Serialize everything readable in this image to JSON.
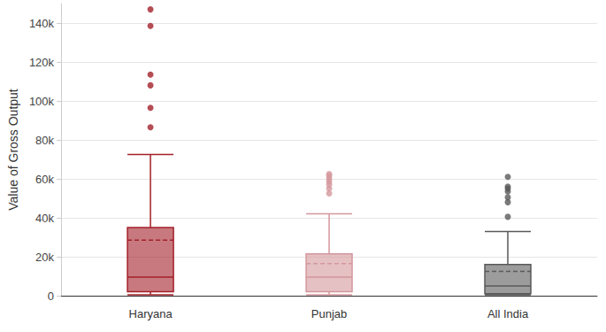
{
  "chart_data": {
    "type": "boxplot",
    "y_label": "Value of Gross Output",
    "categories": [
      "Haryana",
      "Punjab",
      "All India"
    ],
    "colors": [
      "#a3202a",
      "#d4979c",
      "#5a5a5a"
    ],
    "values": [
      [
        500,
        2000,
        9500,
        35000,
        72500
      ],
      [
        500,
        2000,
        9500,
        21500,
        42000
      ],
      [
        500,
        1000,
        5000,
        16000,
        33000
      ]
    ],
    "means": [
      28500,
      16500,
      12500
    ],
    "outliers": [
      [
        86500,
        96500,
        108000,
        113500,
        138500,
        147000
      ],
      [
        52500,
        55000,
        57000,
        58500,
        60000,
        61500,
        62500
      ],
      [
        40500,
        48000,
        50500,
        53500,
        55000,
        56000,
        61000
      ]
    ],
    "ylim": [
      0,
      150000
    ],
    "yticks": [
      0,
      {
        "value": 20000,
        "label": "20k"
      },
      {
        "value": 40000,
        "label": "40k"
      },
      {
        "value": 60000,
        "label": "60k"
      },
      {
        "value": 80000,
        "label": "80k"
      },
      {
        "value": 100000,
        "label": "100k"
      },
      {
        "value": 120000,
        "label": "120k"
      },
      {
        "value": 140000,
        "label": "140k"
      }
    ],
    "grid": true
  }
}
